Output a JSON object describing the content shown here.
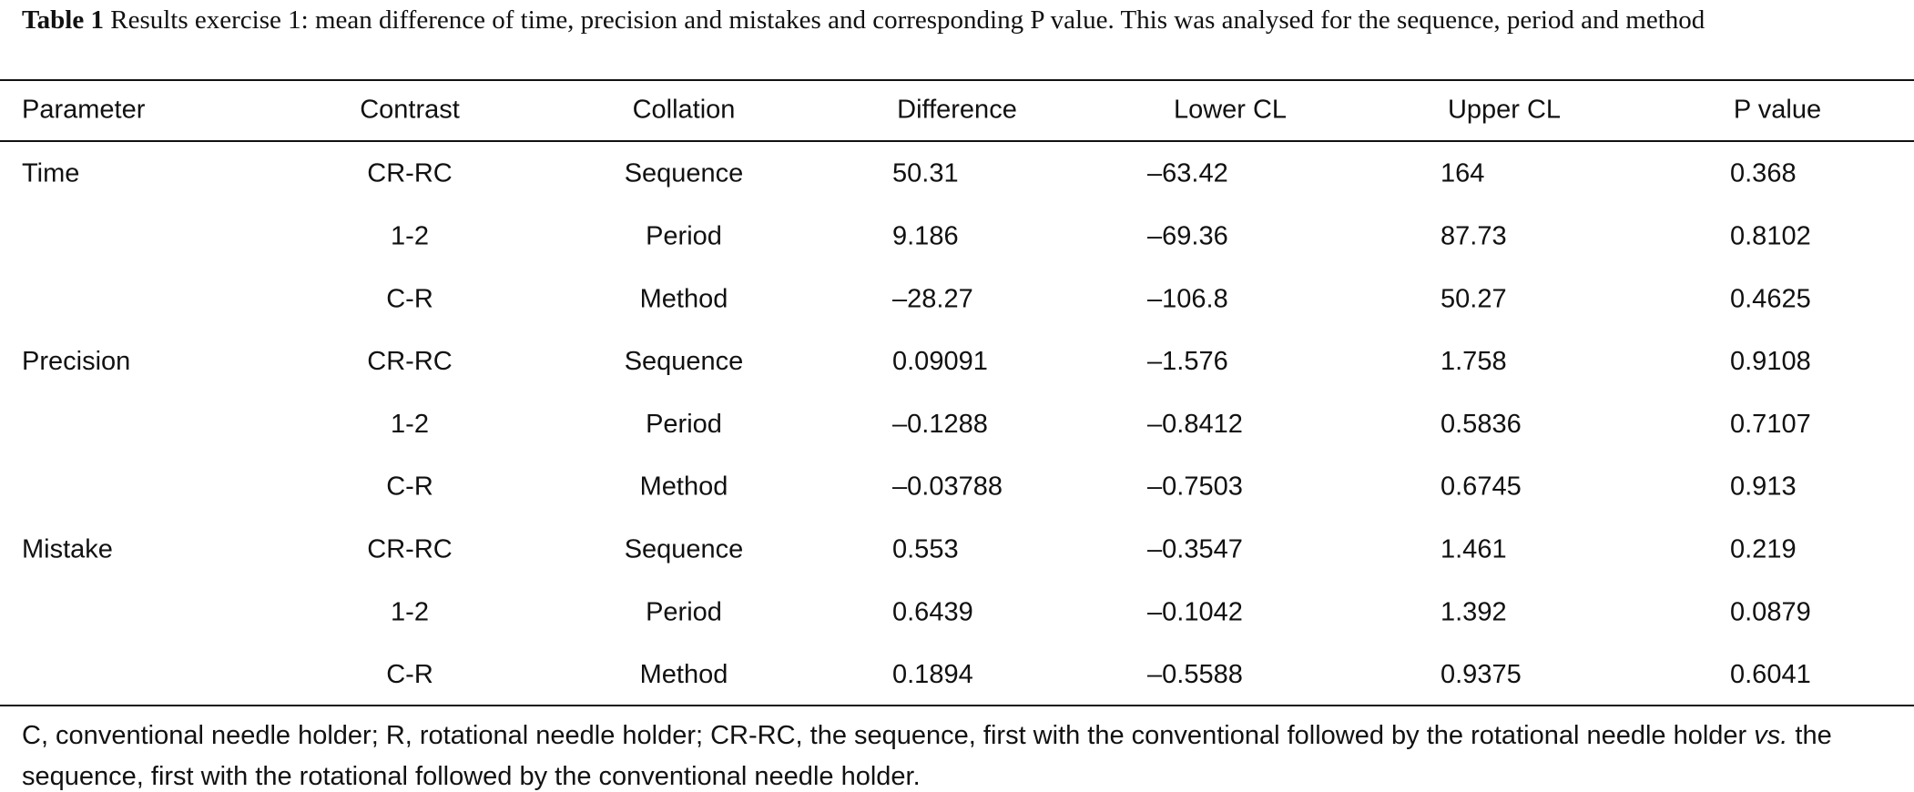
{
  "caption": {
    "label": "Table 1",
    "text": "Results exercise 1: mean difference of time, precision and mistakes and corresponding P value. This was analysed for the sequence, period and method"
  },
  "table": {
    "header": [
      "Parameter",
      "Contrast",
      "Collation",
      "Difference",
      "Lower CL",
      "Upper CL",
      "P value"
    ],
    "rows": [
      [
        "Time",
        "CR-RC",
        "Sequence",
        "50.31",
        "–63.42",
        "164",
        "0.368"
      ],
      [
        null,
        "1-2",
        "Period",
        "9.186",
        "–69.36",
        "87.73",
        "0.8102"
      ],
      [
        null,
        "C-R",
        "Method",
        "–28.27",
        "–106.8",
        "50.27",
        "0.4625"
      ],
      [
        "Precision",
        "CR-RC",
        "Sequence",
        "0.09091",
        "–1.576",
        "1.758",
        "0.9108"
      ],
      [
        null,
        "1-2",
        "Period",
        "–0.1288",
        "–0.8412",
        "0.5836",
        "0.7107"
      ],
      [
        null,
        "C-R",
        "Method",
        "–0.03788",
        "–0.7503",
        "0.6745",
        "0.913"
      ],
      [
        "Mistake",
        "CR-RC",
        "Sequence",
        "0.553",
        "–0.3547",
        "1.461",
        "0.219"
      ],
      [
        null,
        "1-2",
        "Period",
        "0.6439",
        "–0.1042",
        "1.392",
        "0.0879"
      ],
      [
        null,
        "C-R",
        "Method",
        "0.1894",
        "–0.5588",
        "0.9375",
        "0.6041"
      ]
    ]
  },
  "footnote": {
    "parts": [
      "C, conventional needle holder; R, rotational needle holder; CR-RC, the sequence, first with the conventional followed by the rotational needle holder ",
      "vs.",
      " the sequence, first with the rotational followed by the conventional needle holder."
    ]
  }
}
